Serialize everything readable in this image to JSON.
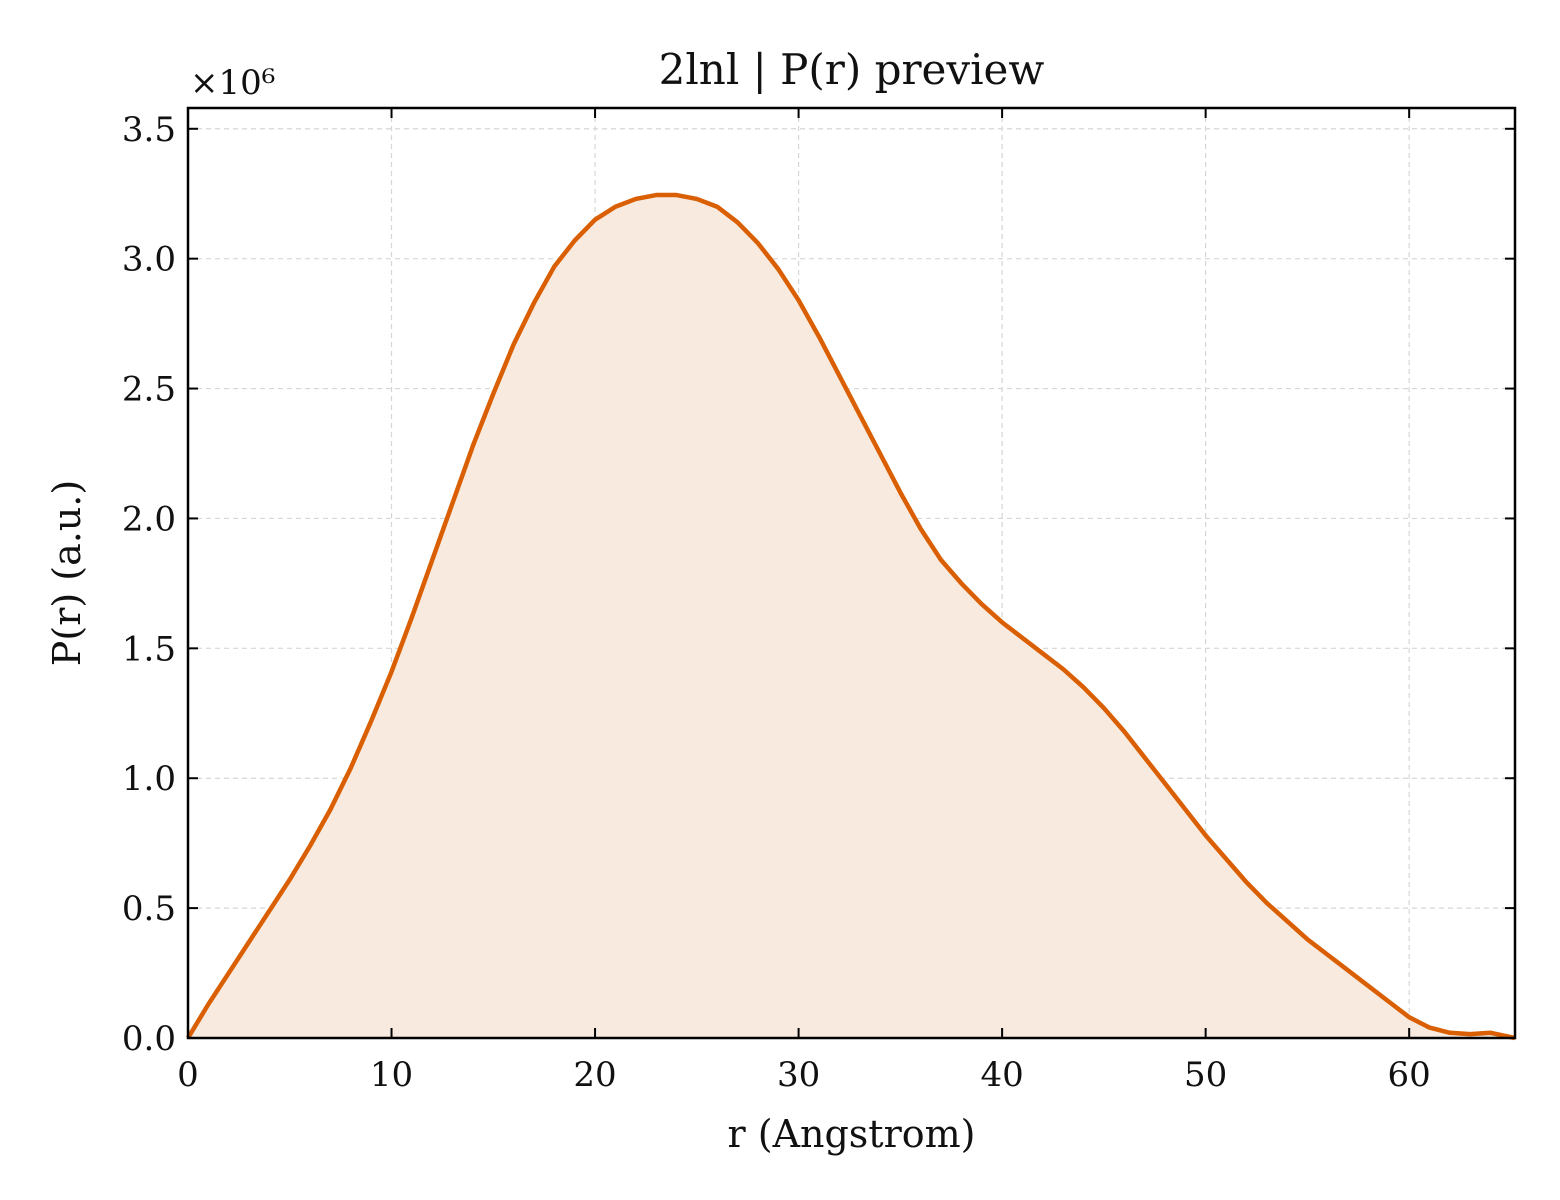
{
  "chart_data": {
    "type": "area",
    "title": "2lnl | P(r) preview",
    "xlabel": "r (Angstrom)",
    "ylabel": "P(r) (a.u.)",
    "y_multiplier_label": "×10⁶",
    "xlim": [
      0,
      65.2
    ],
    "ylim": [
      0,
      3.58
    ],
    "x_ticks": [
      0,
      10,
      20,
      30,
      40,
      50,
      60
    ],
    "y_ticks": [
      0.0,
      0.5,
      1.0,
      1.5,
      2.0,
      2.5,
      3.0,
      3.5
    ],
    "grid": true,
    "line_color": "#d95f02",
    "fill_color": "#f9eadf",
    "series": [
      {
        "x": [
          0,
          1,
          2,
          3,
          4,
          5,
          6,
          7,
          8,
          9,
          10,
          11,
          12,
          13,
          14,
          15,
          16,
          17,
          18,
          19,
          20,
          21,
          22,
          23,
          24,
          25,
          26,
          27,
          28,
          29,
          30,
          31,
          32,
          33,
          34,
          35,
          36,
          37,
          38,
          39,
          40,
          41,
          42,
          43,
          44,
          45,
          46,
          47,
          48,
          49,
          50,
          51,
          52,
          53,
          54,
          55,
          56,
          57,
          58,
          59,
          60,
          61,
          62,
          63,
          64,
          65.2
        ],
        "values": [
          0.0,
          0.13,
          0.25,
          0.37,
          0.49,
          0.61,
          0.74,
          0.88,
          1.04,
          1.22,
          1.41,
          1.62,
          1.84,
          2.06,
          2.28,
          2.48,
          2.67,
          2.83,
          2.97,
          3.07,
          3.15,
          3.2,
          3.23,
          3.245,
          3.245,
          3.23,
          3.2,
          3.14,
          3.06,
          2.96,
          2.84,
          2.7,
          2.55,
          2.4,
          2.25,
          2.1,
          1.96,
          1.84,
          1.75,
          1.67,
          1.6,
          1.54,
          1.48,
          1.42,
          1.35,
          1.27,
          1.18,
          1.08,
          0.98,
          0.88,
          0.78,
          0.69,
          0.6,
          0.52,
          0.45,
          0.38,
          0.32,
          0.26,
          0.2,
          0.14,
          0.08,
          0.04,
          0.02,
          0.015,
          0.02,
          0.0
        ]
      }
    ]
  }
}
